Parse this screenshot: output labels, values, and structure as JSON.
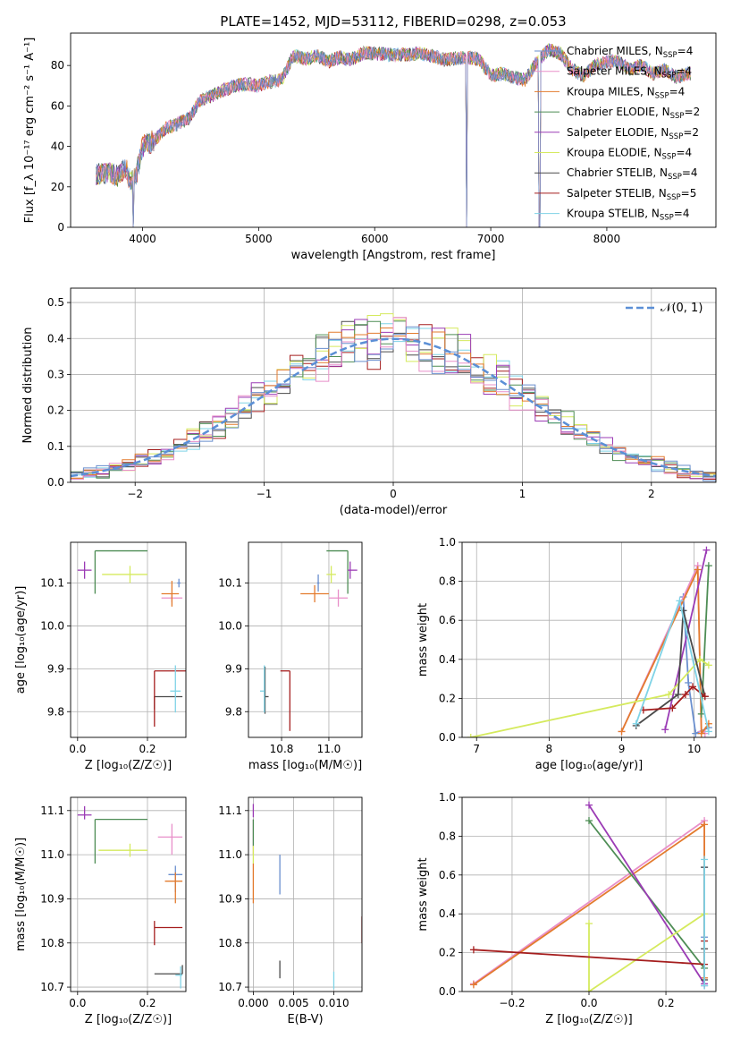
{
  "figure_title": "PLATE=1452, MJD=53112, FIBERID=0298, z=0.053",
  "chart_data": [
    {
      "id": "spectrum",
      "type": "line",
      "xlabel": "wavelength [Angstrom, rest frame]",
      "ylabel": "Flux [f_λ 10⁻¹⁷ erg cm⁻² s⁻¹ A⁻¹]",
      "xlim": [
        3380,
        8940
      ],
      "ylim": [
        0,
        96
      ],
      "xticks": [
        4000,
        5000,
        6000,
        7000,
        8000
      ],
      "yticks": [
        0,
        20,
        40,
        60,
        80
      ],
      "legend_position": "top-right",
      "continuum": {
        "x": [
          3600,
          3700,
          3800,
          3850,
          3900,
          3950,
          4000,
          4100,
          4200,
          4300,
          4400,
          4500,
          4600,
          4700,
          4800,
          4900,
          5000,
          5100,
          5200,
          5300,
          5400,
          5500,
          5600,
          5700,
          5800,
          5900,
          6000,
          6200,
          6400,
          6600,
          6800,
          6900,
          7000,
          7100,
          7200,
          7300,
          7400,
          7500,
          7600,
          7700,
          7800,
          7900,
          8000,
          8100,
          8200,
          8300,
          8400,
          8500,
          8600,
          8700
        ],
        "y": [
          26,
          27,
          25,
          30,
          22,
          27,
          40,
          43,
          49,
          51,
          54,
          63,
          65,
          68,
          70,
          71,
          70,
          72,
          73,
          85,
          83,
          85,
          82,
          84,
          83,
          86,
          86,
          85,
          86,
          83,
          84,
          83,
          75,
          76,
          74,
          73,
          82,
          88,
          86,
          78,
          75,
          80,
          82,
          82,
          78,
          80,
          76,
          78,
          74,
          76
        ]
      },
      "series": [
        {
          "name": "Chabrier MILES, N_SSP=4",
          "label_main": "Chabrier MILES, N",
          "n": "4",
          "color": "#6a8fce"
        },
        {
          "name": "Salpeter MILES, N_SSP=4",
          "label_main": "Salpeter MILES, N",
          "n": "4",
          "color": "#e88fc9"
        },
        {
          "name": "Kroupa MILES, N_SSP=4",
          "label_main": "Kroupa MILES, N",
          "n": "4",
          "color": "#e37b2e"
        },
        {
          "name": "Chabrier ELODIE, N_SSP=2",
          "label_main": "Chabrier ELODIE, N",
          "n": "2",
          "color": "#4e8d55"
        },
        {
          "name": "Salpeter ELODIE, N_SSP=2",
          "label_main": "Salpeter ELODIE, N",
          "n": "2",
          "color": "#9b3bb5"
        },
        {
          "name": "Kroupa ELODIE, N_SSP=4",
          "label_main": "Kroupa ELODIE, N",
          "n": "4",
          "color": "#d5ea5e"
        },
        {
          "name": "Chabrier STELIB, N_SSP=4",
          "label_main": "Chabrier STELIB, N",
          "n": "4",
          "color": "#4a4a4a"
        },
        {
          "name": "Salpeter STELIB, N_SSP=5",
          "label_main": "Salpeter STELIB, N",
          "n": "5",
          "color": "#a51e1e"
        },
        {
          "name": "Kroupa STELIB, N_SSP=4",
          "label_main": "Kroupa STELIB, N",
          "n": "4",
          "color": "#7fd3e6"
        }
      ],
      "drops_to_zero_at": [
        3920,
        6790,
        7420
      ]
    },
    {
      "id": "residuals",
      "type": "histogram",
      "xlabel": "(data-model)/error",
      "ylabel": "Normed distribution",
      "xlim": [
        -2.5,
        2.5
      ],
      "ylim": [
        0,
        0.54
      ],
      "xticks": [
        -2,
        -1,
        0,
        1,
        2
      ],
      "yticks": [
        0.0,
        0.1,
        0.2,
        0.3,
        0.4,
        0.5
      ],
      "grid": true,
      "bin_width": 0.1,
      "reference_curve": {
        "name": "N(0,1)",
        "label": "𝒩(0, 1)",
        "mean": 0,
        "sigma": 1,
        "color": "#5b8fd6"
      },
      "legend_position": "top-right"
    },
    {
      "id": "age_vs_Z",
      "type": "errorbar",
      "xlabel": "Z [log10(Z/Z☉)]",
      "ylabel": "age [log10(age/yr)]",
      "xlim": [
        -0.02,
        0.31
      ],
      "ylim": [
        9.74,
        10.195
      ],
      "xticks": [
        0.0,
        0.2
      ],
      "yticks": [
        9.8,
        9.9,
        10.0,
        10.1
      ],
      "grid": true,
      "points": [
        {
          "series": 0,
          "x": 0.29,
          "y": 10.1,
          "xerr": [
            0.005,
            0.005
          ],
          "yerr": [
            0.01,
            0.01
          ]
        },
        {
          "series": 1,
          "x": 0.27,
          "y": 10.065,
          "xerr": [
            0.03,
            0.03
          ],
          "yerr": [
            0.01,
            0.01
          ]
        },
        {
          "series": 2,
          "x": 0.27,
          "y": 10.075,
          "xerr": [
            0.03,
            0.02
          ],
          "yerr": [
            0.03,
            0.03
          ]
        },
        {
          "series": 3,
          "x": 0.05,
          "y": 10.175,
          "xerr": [
            0.0,
            0.15
          ],
          "yerr": [
            0.1,
            0.0
          ]
        },
        {
          "series": 4,
          "x": 0.02,
          "y": 10.13,
          "xerr": [
            0.02,
            0.02
          ],
          "yerr": [
            0.02,
            0.02
          ]
        },
        {
          "series": 5,
          "x": 0.15,
          "y": 10.12,
          "xerr": [
            0.08,
            0.05
          ],
          "yerr": [
            0.02,
            0.02
          ]
        },
        {
          "series": 6,
          "x": 0.22,
          "y": 9.835,
          "xerr": [
            0.0,
            0.08
          ],
          "yerr": [
            0.03,
            0.0
          ]
        },
        {
          "series": 7,
          "x": 0.22,
          "y": 9.895,
          "xerr": [
            0.0,
            0.09
          ],
          "yerr": [
            0.13,
            0.0
          ]
        },
        {
          "series": 8,
          "x": 0.28,
          "y": 9.848,
          "xerr": [
            0.015,
            0.015
          ],
          "yerr": [
            0.05,
            0.06
          ]
        }
      ]
    },
    {
      "id": "age_vs_mass",
      "type": "errorbar",
      "xlabel": "mass [log10(M/M☉)]",
      "ylabel": "",
      "xlim": [
        10.66,
        11.14
      ],
      "ylim": [
        9.74,
        10.195
      ],
      "xticks": [
        10.8,
        11.0
      ],
      "yticks": [
        9.8,
        9.9,
        10.0,
        10.1
      ],
      "grid": true,
      "points": [
        {
          "series": 0,
          "x": 10.955,
          "y": 10.1,
          "xerr": [
            0.005,
            0.005
          ],
          "yerr": [
            0.02,
            0.02
          ]
        },
        {
          "series": 1,
          "x": 11.04,
          "y": 10.065,
          "xerr": [
            0.04,
            0.04
          ],
          "yerr": [
            0.02,
            0.02
          ]
        },
        {
          "series": 2,
          "x": 10.94,
          "y": 10.075,
          "xerr": [
            0.06,
            0.06
          ],
          "yerr": [
            0.02,
            0.02
          ]
        },
        {
          "series": 3,
          "x": 11.08,
          "y": 10.175,
          "xerr": [
            0.09,
            0.0
          ],
          "yerr": [
            0.1,
            0.0
          ]
        },
        {
          "series": 4,
          "x": 11.09,
          "y": 10.13,
          "xerr": [
            0.01,
            0.03
          ],
          "yerr": [
            0.02,
            0.02
          ]
        },
        {
          "series": 5,
          "x": 11.01,
          "y": 10.12,
          "xerr": [
            0.02,
            0.02
          ],
          "yerr": [
            0.02,
            0.02
          ]
        },
        {
          "series": 6,
          "x": 10.73,
          "y": 9.835,
          "xerr": [
            0.0,
            0.015
          ],
          "yerr": [
            0.04,
            0.07
          ]
        },
        {
          "series": 7,
          "x": 10.835,
          "y": 9.895,
          "xerr": [
            0.04,
            0.0
          ],
          "yerr": [
            0.14,
            0.0
          ]
        },
        {
          "series": 8,
          "x": 10.727,
          "y": 9.848,
          "xerr": [
            0.018,
            0.0
          ],
          "yerr": [
            0.05,
            0.06
          ]
        }
      ]
    },
    {
      "id": "weight_vs_age",
      "type": "line",
      "xlabel": "age [log10(age/yr)]",
      "ylabel": "mass weight",
      "xlim": [
        6.8,
        10.3
      ],
      "ylim": [
        0.0,
        1.0
      ],
      "xticks": [
        7,
        8,
        9,
        10
      ],
      "yticks": [
        0.0,
        0.2,
        0.4,
        0.6,
        0.8,
        1.0
      ],
      "grid": true,
      "series": [
        {
          "series": 0,
          "x": [
            9.85,
            9.92,
            10.02,
            10.2
          ],
          "y": [
            0.72,
            0.28,
            0.02,
            0.05
          ]
        },
        {
          "series": 1,
          "x": [
            9.0,
            10.05,
            10.1,
            10.15
          ],
          "y": [
            0.03,
            0.88,
            0.03,
            0.02
          ]
        },
        {
          "series": 2,
          "x": [
            9.0,
            10.05,
            10.1,
            10.2
          ],
          "y": [
            0.03,
            0.86,
            0.02,
            0.07
          ]
        },
        {
          "series": 3,
          "x": [
            10.1,
            10.2
          ],
          "y": [
            0.12,
            0.88
          ]
        },
        {
          "series": 4,
          "x": [
            9.6,
            10.17
          ],
          "y": [
            0.04,
            0.96
          ]
        },
        {
          "series": 5,
          "x": [
            6.92,
            9.65,
            10.08,
            10.2
          ],
          "y": [
            0.0,
            0.22,
            0.4,
            0.37
          ]
        },
        {
          "series": 6,
          "x": [
            9.2,
            9.78,
            9.85,
            10.15
          ],
          "y": [
            0.06,
            0.22,
            0.65,
            0.21
          ]
        },
        {
          "series": 7,
          "x": [
            9.3,
            9.7,
            9.88,
            9.98,
            10.15
          ],
          "y": [
            0.14,
            0.15,
            0.22,
            0.26,
            0.21
          ]
        },
        {
          "series": 8,
          "x": [
            9.2,
            9.8,
            10.2
          ],
          "y": [
            0.07,
            0.7,
            0.03
          ]
        }
      ]
    },
    {
      "id": "mass_vs_Z",
      "type": "errorbar",
      "xlabel": "Z [log10(Z/Z☉)]",
      "ylabel": "mass [log10(M/M☉)]",
      "xlim": [
        -0.02,
        0.31
      ],
      "ylim": [
        10.69,
        11.13
      ],
      "xticks": [
        0.0,
        0.2
      ],
      "yticks": [
        10.7,
        10.8,
        10.9,
        11.0,
        11.1
      ],
      "grid": true,
      "points": [
        {
          "series": 0,
          "x": 0.28,
          "y": 10.955,
          "xerr": [
            0.02,
            0.02
          ],
          "yerr": [
            0.04,
            0.02
          ]
        },
        {
          "series": 1,
          "x": 0.27,
          "y": 11.04,
          "xerr": [
            0.04,
            0.03
          ],
          "yerr": [
            0.04,
            0.03
          ]
        },
        {
          "series": 2,
          "x": 0.28,
          "y": 10.94,
          "xerr": [
            0.03,
            0.02
          ],
          "yerr": [
            0.05,
            0.02
          ]
        },
        {
          "series": 3,
          "x": 0.05,
          "y": 11.08,
          "xerr": [
            0.0,
            0.15
          ],
          "yerr": [
            0.1,
            0.0
          ]
        },
        {
          "series": 4,
          "x": 0.02,
          "y": 11.09,
          "xerr": [
            0.02,
            0.02
          ],
          "yerr": [
            0.01,
            0.02
          ]
        },
        {
          "series": 5,
          "x": 0.15,
          "y": 11.01,
          "xerr": [
            0.09,
            0.05
          ],
          "yerr": [
            0.015,
            0.015
          ]
        },
        {
          "series": 6,
          "x": 0.3,
          "y": 10.73,
          "xerr": [
            0.08,
            0.0
          ],
          "yerr": [
            0.0,
            0.02
          ]
        },
        {
          "series": 7,
          "x": 0.22,
          "y": 10.835,
          "xerr": [
            0.0,
            0.08
          ],
          "yerr": [
            0.04,
            0.015
          ]
        },
        {
          "series": 8,
          "x": 0.295,
          "y": 10.727,
          "xerr": [
            0.015,
            0.005
          ],
          "yerr": [
            0.03,
            0.02
          ]
        }
      ]
    },
    {
      "id": "mass_vs_ebv",
      "type": "errorbar",
      "xlabel": "E(B-V)",
      "ylabel": "",
      "xlim": [
        -0.0006,
        0.0135
      ],
      "ylim": [
        10.69,
        11.13
      ],
      "xticks": [
        0.0,
        0.005,
        0.01
      ],
      "xticklabels": [
        "0.000",
        "0.005",
        "0.010"
      ],
      "yticks": [
        10.7,
        10.8,
        10.9,
        11.0,
        11.1
      ],
      "grid": true,
      "points": [
        {
          "series": 0,
          "x": 0.0033,
          "y": 10.955,
          "xerr": [
            0.0,
            0.0
          ],
          "yerr": [
            0.045,
            0.045
          ]
        },
        {
          "series": 1,
          "x": 0.0,
          "y": 11.04,
          "xerr": [
            0.0,
            0.0
          ],
          "yerr": [
            0.04,
            0.04
          ]
        },
        {
          "series": 2,
          "x": 0.0,
          "y": 10.94,
          "xerr": [
            0.0,
            0.0
          ],
          "yerr": [
            0.05,
            0.04
          ]
        },
        {
          "series": 3,
          "x": 0.0,
          "y": 11.05,
          "xerr": [
            0.0,
            0.0
          ],
          "yerr": [
            0.03,
            0.03
          ]
        },
        {
          "series": 4,
          "x": 0.0,
          "y": 11.1,
          "xerr": [
            0.0,
            0.0
          ],
          "yerr": [
            0.015,
            0.015
          ]
        },
        {
          "series": 5,
          "x": 0.0,
          "y": 11.0,
          "xerr": [
            0.0,
            0.0
          ],
          "yerr": [
            0.02,
            0.02
          ]
        },
        {
          "series": 6,
          "x": 0.0033,
          "y": 10.74,
          "xerr": [
            0.0,
            0.0
          ],
          "yerr": [
            0.02,
            0.02
          ]
        },
        {
          "series": 7,
          "x": 0.0135,
          "y": 10.83,
          "xerr": [
            0.0,
            0.0
          ],
          "yerr": [
            0.03,
            0.03
          ]
        },
        {
          "series": 8,
          "x": 0.01,
          "y": 10.715,
          "xerr": [
            0.0,
            0.0
          ],
          "yerr": [
            0.02,
            0.02
          ]
        }
      ]
    },
    {
      "id": "weight_vs_Z",
      "type": "line",
      "xlabel": "Z [log10(Z/Z☉)]",
      "ylabel": "mass weight",
      "xlim": [
        -0.33,
        0.33
      ],
      "ylim": [
        0.0,
        1.0
      ],
      "xticks": [
        -0.2,
        0.0,
        0.2
      ],
      "yticks": [
        0.0,
        0.2,
        0.4,
        0.6,
        0.8,
        1.0
      ],
      "grid": true,
      "series": [
        {
          "series": 0,
          "x": [
            0.3,
            0.3,
            0.3
          ],
          "y": [
            0.64,
            0.28,
            0.03
          ]
        },
        {
          "series": 1,
          "x": [
            -0.3,
            0.3,
            0.3
          ],
          "y": [
            0.04,
            0.88,
            0.03
          ]
        },
        {
          "series": 2,
          "x": [
            -0.3,
            0.3,
            0.3
          ],
          "y": [
            0.035,
            0.86,
            0.07
          ]
        },
        {
          "series": 3,
          "x": [
            0.0,
            0.3
          ],
          "y": [
            0.88,
            0.12
          ]
        },
        {
          "series": 4,
          "x": [
            0.0,
            0.3
          ],
          "y": [
            0.96,
            0.04
          ]
        },
        {
          "series": 5,
          "x": [
            0.0,
            0.0,
            0.3
          ],
          "y": [
            0.35,
            0.0,
            0.4
          ]
        },
        {
          "series": 6,
          "x": [
            0.3,
            0.3,
            0.3
          ],
          "y": [
            0.64,
            0.22,
            0.06
          ]
        },
        {
          "series": 7,
          "x": [
            -0.3,
            0.3,
            0.3
          ],
          "y": [
            0.215,
            0.14,
            0.26
          ]
        },
        {
          "series": 8,
          "x": [
            0.3,
            0.3
          ],
          "y": [
            0.68,
            0.03
          ]
        }
      ]
    }
  ]
}
